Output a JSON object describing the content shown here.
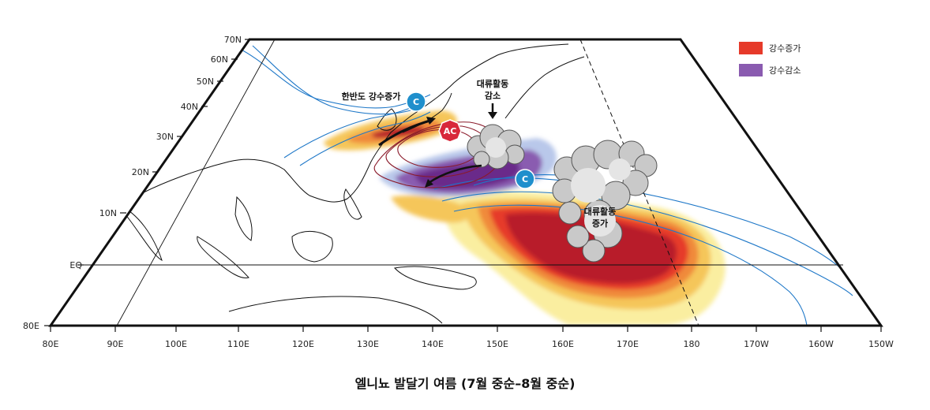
{
  "lat_labels": [
    "70N",
    "60N",
    "50N",
    "40N",
    "30N",
    "20N",
    "10N",
    "EQ",
    "80E"
  ],
  "lon_labels": [
    "80E",
    "90E",
    "100E",
    "110E",
    "120E",
    "130E",
    "140E",
    "150E",
    "160E",
    "170E",
    "180",
    "170W",
    "160W",
    "150W"
  ],
  "legend": [
    {
      "label": "강수증가",
      "color": "#e63a2a"
    },
    {
      "label": "강수감소",
      "color": "#8a5bb0"
    }
  ],
  "annotations": {
    "korea_increase": "한반도 강수증가",
    "convection_decrease_1": "대류활동",
    "convection_decrease_2": "감소",
    "convection_increase_1": "대류활동",
    "convection_increase_2": "증가"
  },
  "markers": {
    "cyclone_north": "C",
    "anticyclone": "AC",
    "cyclone_south": "C"
  },
  "colors": {
    "precip_strong": "#b81f2a",
    "precip_high": "#e63a2a",
    "precip_mid": "#f08a3a",
    "precip_low": "#f5c65a",
    "precip_weak": "#faeea0",
    "dry_strong": "#6a2a8a",
    "dry_mid": "#8a5bb0",
    "dry_weak": "#b9c8ea",
    "contour_blue": "#1f78c8",
    "contour_red": "#8a1a2a",
    "cyclone": "#1f8fcc",
    "anticyclone": "#d8283a"
  },
  "caption": "엘니뇨 발달기 여름 (7월 중순–8월 중순)"
}
